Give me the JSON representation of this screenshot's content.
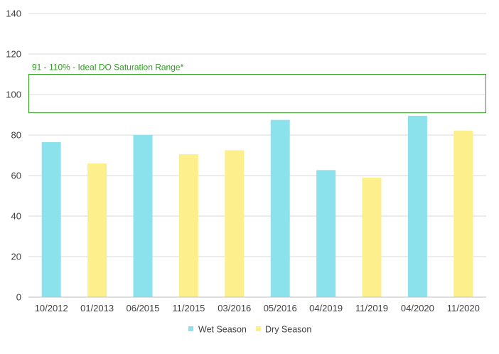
{
  "chart_data": {
    "type": "bar",
    "categories": [
      "10/2012",
      "01/2013",
      "06/2015",
      "11/2015",
      "03/2016",
      "05/2016",
      "04/2019",
      "11/2019",
      "04/2020",
      "11/2020"
    ],
    "values": [
      76.5,
      66,
      80,
      70.5,
      72.5,
      87.5,
      62.7,
      59,
      89.5,
      82.2
    ],
    "season": [
      "wet",
      "dry",
      "wet",
      "dry",
      "dry",
      "wet",
      "wet",
      "dry",
      "wet",
      "dry"
    ],
    "series": [
      {
        "name": "Wet Season",
        "key": "wet",
        "color": "#8be2ec"
      },
      {
        "name": "Dry Season",
        "key": "dry",
        "color": "#fdf08c"
      }
    ],
    "yticks": [
      "0",
      "20",
      "40",
      "60",
      "80",
      "100",
      "120",
      "140"
    ],
    "ylim": [
      0,
      140
    ],
    "grid": true,
    "legend_position": "bottom",
    "annotation": {
      "text": "91 - 110% - Ideal DO Saturation Range*",
      "range": [
        91,
        110
      ],
      "color": "#2e9e1f"
    }
  }
}
